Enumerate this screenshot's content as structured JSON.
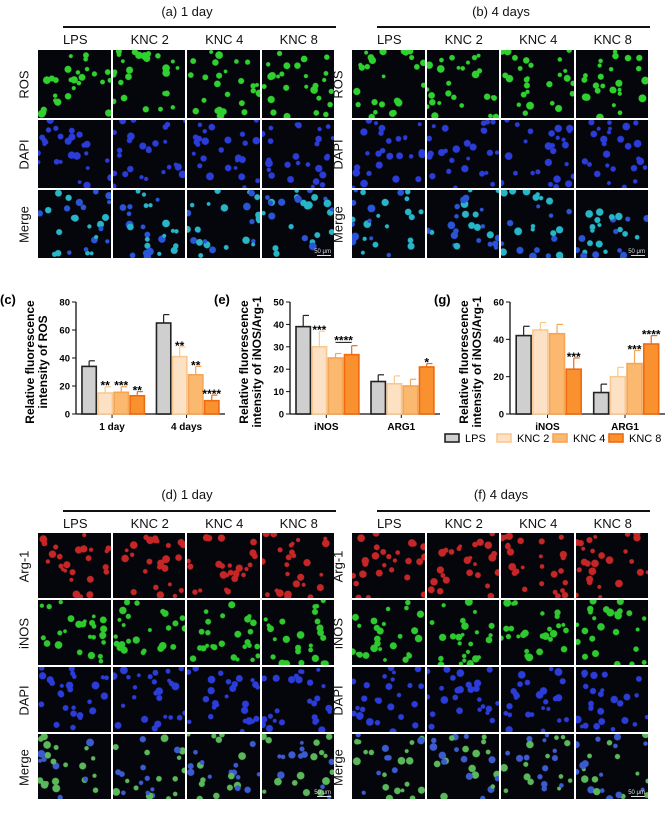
{
  "colors": {
    "LPS": "#cfcfcf",
    "KNC 2": "#fde1c4",
    "KNC 4": "#fbb86f",
    "KNC 8": "#f9912f",
    "LPS_edge": "#222222",
    "KNC 2_edge": "#f9c890",
    "KNC 4_edge": "#f6a456",
    "KNC 8_edge": "#f06a10"
  },
  "channels": {
    "ROS": "#2fd12f",
    "DAPI": "#2b3cd8",
    "Merge": "#27b6c8",
    "Arg-1": "#c62626",
    "iNOS": "#2ec92e",
    "Merge2": "#5ab85a"
  },
  "top": [
    {
      "title": "(a) 1 day",
      "columns": [
        "LPS",
        "KNC 2",
        "KNC 4",
        "KNC 8"
      ],
      "rows": [
        "ROS",
        "DAPI",
        "Merge"
      ],
      "scale_bar": "50 μm"
    },
    {
      "title": "(b) 4 days",
      "columns": [
        "LPS",
        "KNC 2",
        "KNC 4",
        "KNC 8"
      ],
      "rows": [
        "ROS",
        "DAPI",
        "Merge"
      ],
      "scale_bar": "50 μm"
    }
  ],
  "bottom": [
    {
      "title": "(d) 1 day",
      "columns": [
        "LPS",
        "KNC 2",
        "KNC 4",
        "KNC 8"
      ],
      "rows": [
        "Arg-1",
        "iNOS",
        "DAPI",
        "Merge"
      ],
      "scale_bar": "50 μm"
    },
    {
      "title": "(f) 4 days",
      "columns": [
        "LPS",
        "KNC 2",
        "KNC 4",
        "KNC 8"
      ],
      "rows": [
        "Arg-1",
        "iNOS",
        "DAPI",
        "Merge"
      ],
      "scale_bar": "50 μm"
    }
  ],
  "legend": [
    "LPS",
    "KNC 2",
    "KNC 4",
    "KNC 8"
  ],
  "chart_data": [
    {
      "panel": "(c)",
      "type": "bar",
      "ylabel": [
        "Relative fluorescence",
        "intensity of ROS"
      ],
      "ylim": [
        0,
        80
      ],
      "yticks": [
        0,
        20,
        40,
        60,
        80
      ],
      "categories": [
        "1 day",
        "4 days"
      ],
      "series": [
        {
          "name": "LPS",
          "values": [
            34,
            65
          ],
          "errors": [
            4,
            6
          ],
          "sig": [
            "",
            ""
          ]
        },
        {
          "name": "KNC 2",
          "values": [
            15,
            41
          ],
          "errors": [
            4.5,
            7
          ],
          "sig": [
            "**",
            "**"
          ]
        },
        {
          "name": "KNC 4",
          "values": [
            15.5,
            28
          ],
          "errors": [
            4,
            6
          ],
          "sig": [
            "***",
            "**"
          ]
        },
        {
          "name": "KNC 8",
          "values": [
            13,
            9.5
          ],
          "errors": [
            3,
            4
          ],
          "sig": [
            "**",
            "****"
          ]
        }
      ]
    },
    {
      "panel": "(e)",
      "type": "bar",
      "ylabel": [
        "Relative fluorescence",
        "intensity of iNOS/Arg-1"
      ],
      "ylim": [
        0,
        50
      ],
      "yticks": [
        0,
        10,
        20,
        30,
        40,
        50
      ],
      "categories": [
        "iNOS",
        "ARG1"
      ],
      "series": [
        {
          "name": "LPS",
          "values": [
            39,
            14.5
          ],
          "errors": [
            5,
            3
          ],
          "sig": [
            "",
            ""
          ]
        },
        {
          "name": "KNC 2",
          "values": [
            30,
            13.5
          ],
          "errors": [
            7,
            3.5
          ],
          "sig": [
            "***",
            ""
          ]
        },
        {
          "name": "KNC 4",
          "values": [
            25,
            12.5
          ],
          "errors": [
            2,
            3
          ],
          "sig": [
            "",
            ""
          ]
        },
        {
          "name": "KNC 8",
          "values": [
            26.5,
            21
          ],
          "errors": [
            4,
            1.5
          ],
          "sig": [
            "",
            "*"
          ]
        }
      ],
      "bracket": {
        "category": "iNOS",
        "from": "KNC 4",
        "to": "KNC 8",
        "label": "****"
      }
    },
    {
      "panel": "(g)",
      "type": "bar",
      "ylabel": [
        "Relative fluorescence",
        "intensity of iNOS/Arg-1"
      ],
      "ylim": [
        0,
        60
      ],
      "yticks": [
        0,
        20,
        40,
        60
      ],
      "categories": [
        "iNOS",
        "ARG1"
      ],
      "series": [
        {
          "name": "LPS",
          "values": [
            42,
            11.5
          ],
          "errors": [
            5,
            4.5
          ],
          "sig": [
            "",
            ""
          ]
        },
        {
          "name": "KNC 2",
          "values": [
            45,
            20
          ],
          "errors": [
            4,
            5
          ],
          "sig": [
            "",
            ""
          ]
        },
        {
          "name": "KNC 4",
          "values": [
            43,
            27
          ],
          "errors": [
            5,
            7
          ],
          "sig": [
            "",
            "***"
          ]
        },
        {
          "name": "KNC 8",
          "values": [
            24,
            37.5
          ],
          "errors": [
            6,
            4.5
          ],
          "sig": [
            "***",
            "****"
          ]
        }
      ]
    }
  ]
}
